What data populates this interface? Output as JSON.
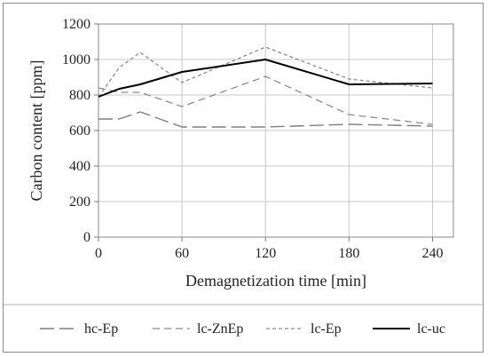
{
  "chart_data": {
    "type": "line",
    "title": "",
    "xlabel": "Demagnetization time [min]",
    "ylabel": "Carbon content [ppm]",
    "xlim": [
      0,
      255
    ],
    "ylim": [
      0,
      1200
    ],
    "xticks": [
      0,
      60,
      120,
      180,
      240
    ],
    "yticks": [
      0,
      200,
      400,
      600,
      800,
      1000,
      1200
    ],
    "grid": true,
    "legend_position": "bottom",
    "series": [
      {
        "name": "hc-Ep",
        "color": "#7f7f7f",
        "dash": "long-dash",
        "x": [
          0,
          15,
          30,
          60,
          120,
          180,
          240
        ],
        "y": [
          665,
          665,
          705,
          620,
          620,
          635,
          625
        ]
      },
      {
        "name": "lc-ZnEp",
        "color": "#8c8c8c",
        "dash": "dash",
        "x": [
          0,
          15,
          30,
          60,
          120,
          180,
          240
        ],
        "y": [
          840,
          815,
          815,
          735,
          905,
          690,
          635
        ]
      },
      {
        "name": "lc-Ep",
        "color": "#8c8c8c",
        "dash": "short-dash",
        "x": [
          0,
          15,
          30,
          60,
          120,
          180,
          240
        ],
        "y": [
          790,
          955,
          1040,
          870,
          1070,
          890,
          840
        ]
      },
      {
        "name": "lc-uc",
        "color": "#000000",
        "dash": "solid",
        "x": [
          0,
          15,
          30,
          60,
          120,
          180,
          240
        ],
        "y": [
          790,
          835,
          860,
          930,
          1000,
          860,
          865
        ]
      }
    ]
  }
}
